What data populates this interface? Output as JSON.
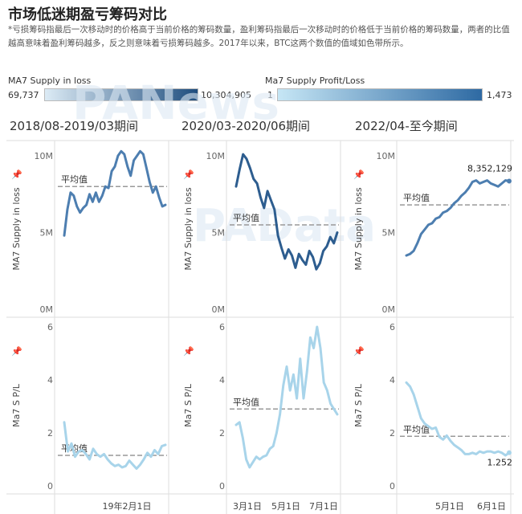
{
  "header": {
    "title": "市场低迷期盈亏筹码对比",
    "description": "*亏损筹码指最后一次移动时的价格高于当前价格的筹码数量，盈利筹码指最后一次移动时的价格低于当前价格的筹码数量，两者的比值越高意味着盈利筹码越多，反之则意味着亏损筹码越多。2017年以来，BTC这两个数值的值域如色带所示。"
  },
  "legend": {
    "supply_loss": {
      "label": "MA7 Supply in loss",
      "min": "69,737",
      "max": "10,304,905"
    },
    "profit_loss": {
      "label": "Ma7 Supply Profit/Loss",
      "min": "1",
      "max": "1,473"
    }
  },
  "watermarks": {
    "top": "PANews",
    "bottom": "PAData"
  },
  "colors": {
    "dark": "#2d5d8f",
    "mid": "#4d7eb0",
    "light": "#a8d4ea",
    "avg_line": "#999999"
  },
  "periods": [
    {
      "title": "2018/08-2019/03期间",
      "x_ticks": [
        "19年2月1日"
      ]
    },
    {
      "title": "2020/03-2020/06期间",
      "x_ticks": [
        "3月1日",
        "5月1日",
        "7月1日"
      ]
    },
    {
      "title": "2022/04-至今期间",
      "x_ticks": [
        "5月1日",
        "6月1日"
      ]
    }
  ],
  "avg_label": "平均值",
  "chart_data": [
    {
      "type": "line",
      "ylabel": "MA7 Supply in loss",
      "ylim": [
        0,
        11000000
      ],
      "y_ticks": [
        {
          "v": 0,
          "label": "0M"
        },
        {
          "v": 5000000,
          "label": "5M"
        },
        {
          "v": 10000000,
          "label": "10M"
        }
      ],
      "panels": [
        {
          "avg": 8000000,
          "values": [
            4800000,
            6500000,
            7600000,
            7400000,
            6700000,
            6300000,
            6600000,
            6800000,
            7500000,
            7000000,
            7600000,
            7000000,
            7400000,
            8000000,
            7900000,
            9000000,
            9300000,
            10000000,
            10300000,
            10100000,
            9300000,
            8700000,
            9700000,
            10000000,
            10300000,
            10100000,
            9200000,
            8300000,
            7600000,
            8000000,
            7300000,
            6700000,
            6800000
          ]
        },
        {
          "avg": 5500000,
          "values": [
            8000000,
            9100000,
            10100000,
            9800000,
            9200000,
            8500000,
            8200000,
            7300000,
            6600000,
            7700000,
            7100000,
            6500000,
            4800000,
            4000000,
            3300000,
            3900000,
            3500000,
            2700000,
            3600000,
            3200000,
            2900000,
            3800000,
            3400000,
            2600000,
            3000000,
            3800000,
            4100000,
            4700000,
            4300000,
            5000000
          ]
        },
        {
          "avg": 6800000,
          "values": [
            3500000,
            3600000,
            3800000,
            4300000,
            4900000,
            5200000,
            5500000,
            5600000,
            5900000,
            6000000,
            6300000,
            6400000,
            6600000,
            6900000,
            7100000,
            7400000,
            7600000,
            7900000,
            8300000,
            8400000,
            8200000,
            8300000,
            8400000,
            8200000,
            8100000,
            8000000,
            8200000,
            8400000,
            8352129
          ],
          "end_label": "8,352,129"
        }
      ]
    },
    {
      "type": "line",
      "ylabel": "Ma7 S P/L",
      "ylim": [
        0,
        6.3
      ],
      "y_ticks": [
        {
          "v": 0,
          "label": "0"
        },
        {
          "v": 2,
          "label": "2"
        },
        {
          "v": 4,
          "label": "4"
        },
        {
          "v": 6,
          "label": "6"
        }
      ],
      "panels": [
        {
          "avg": 1.15,
          "values": [
            2.4,
            1.3,
            1.6,
            1.1,
            1.3,
            1.35,
            1.2,
            1.0,
            1.4,
            1.2,
            1.1,
            1.2,
            1.0,
            0.85,
            0.75,
            0.8,
            0.7,
            0.75,
            0.95,
            0.8,
            0.65,
            0.8,
            1.0,
            1.25,
            1.1,
            1.35,
            1.2,
            1.5,
            1.55
          ]
        },
        {
          "avg": 2.9,
          "values": [
            2.3,
            2.4,
            1.8,
            1.0,
            0.7,
            0.9,
            1.1,
            1.0,
            1.1,
            1.15,
            1.4,
            1.5,
            2.0,
            2.7,
            3.8,
            4.5,
            3.6,
            4.2,
            3.3,
            4.8,
            3.3,
            4.3,
            5.6,
            5.2,
            6.0,
            5.2,
            3.9,
            3.6,
            3.1,
            2.9,
            2.7
          ]
        },
        {
          "avg": 1.87,
          "values": [
            3.9,
            3.75,
            3.45,
            3.0,
            2.55,
            2.35,
            2.25,
            2.15,
            2.2,
            1.85,
            1.75,
            1.9,
            1.7,
            1.55,
            1.45,
            1.35,
            1.2,
            1.2,
            1.25,
            1.2,
            1.3,
            1.25,
            1.3,
            1.3,
            1.25,
            1.3,
            1.25,
            1.15,
            1.252
          ],
          "end_label": "1.252"
        }
      ]
    }
  ]
}
